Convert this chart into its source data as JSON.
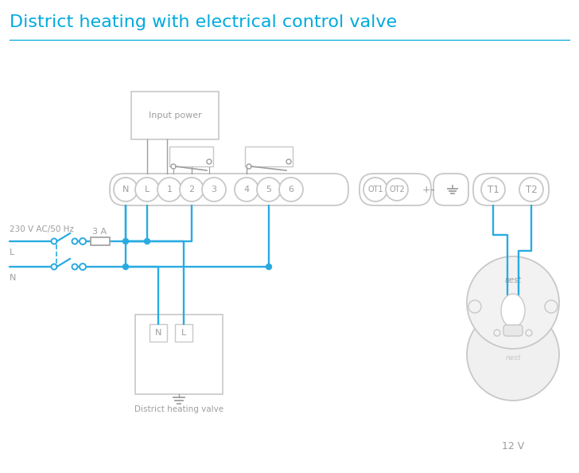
{
  "title": "District heating with electrical control valve",
  "title_color": "#00AADD",
  "title_fontsize": 16,
  "line_color": "#29ABE2",
  "bg_color": "#FFFFFF",
  "gray": "#9E9E9E",
  "lgray": "#C8C8C8",
  "label_230v": "230 V AC/50 Hz",
  "label_L": "L",
  "label_N": "N",
  "label_3A": "3 A",
  "label_input_power": "Input power",
  "label_district": "District heating valve",
  "label_12v": "12 V",
  "label_nest": "nest"
}
